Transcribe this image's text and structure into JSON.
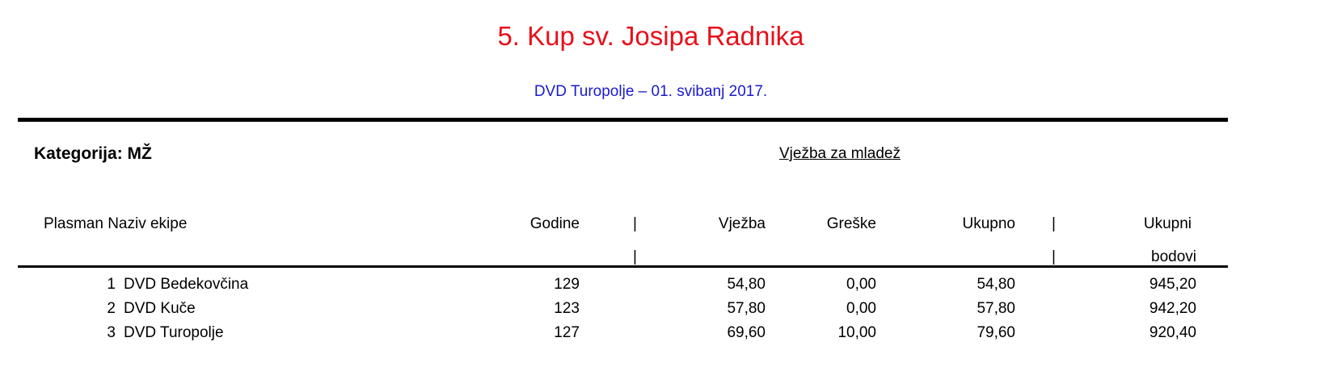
{
  "header": {
    "title": "5. Kup sv. Josipa Radnika",
    "subtitle": "DVD Turopolje – 01. svibanj 2017."
  },
  "category": {
    "label": "Kategorija: MŽ",
    "discipline": "Vježba za mladež"
  },
  "table": {
    "columns": {
      "plasman_naziv": "Plasman Naziv ekipe",
      "godine": "Godine",
      "sep": "|",
      "vjezba": "Vježba",
      "greske": "Greške",
      "ukupno": "Ukupno",
      "ukupni_1": "Ukupni",
      "ukupni_2": "bodovi"
    },
    "rows": [
      {
        "rank": "1",
        "team": "DVD Bedekovčina",
        "godine": "129",
        "vjezba": "54,80",
        "greske": "0,00",
        "ukupno": "54,80",
        "bodovi": "945,20"
      },
      {
        "rank": "2",
        "team": "DVD Kuče",
        "godine": "123",
        "vjezba": "57,80",
        "greske": "0,00",
        "ukupno": "57,80",
        "bodovi": "942,20"
      },
      {
        "rank": "3",
        "team": "DVD Turopolje",
        "godine": "127",
        "vjezba": "69,60",
        "greske": "10,00",
        "ukupno": "79,60",
        "bodovi": "920,40"
      }
    ]
  },
  "colors": {
    "title": "#e8101a",
    "subtitle": "#1a1acc"
  }
}
